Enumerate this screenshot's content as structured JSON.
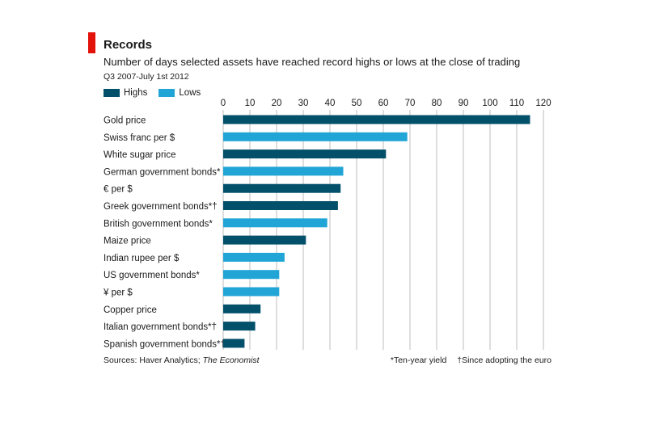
{
  "header": {
    "title": "Records",
    "subtitle": "Number of days selected assets have reached record highs or lows at the close of trading",
    "period": "Q3 2007-July 1st 2012"
  },
  "legend": {
    "highs_label": "Highs",
    "lows_label": "Lows"
  },
  "colors": {
    "accent": "#e3120b",
    "highs": "#03506a",
    "lows": "#21a5d6",
    "grid": "#bcbcbc"
  },
  "footer": {
    "source_prefix": "Sources: Haver Analytics; ",
    "source_publication": "The Economist",
    "footnote_yield": "*Ten-year yield",
    "footnote_euro": "†Since adopting the euro"
  },
  "chart_data": {
    "type": "bar",
    "orientation": "horizontal",
    "xlim": [
      0,
      120
    ],
    "xticks": [
      0,
      10,
      20,
      30,
      40,
      50,
      60,
      70,
      80,
      90,
      100,
      110,
      120
    ],
    "grid": true,
    "legend_position": "top-left",
    "categories": [
      "Gold price",
      "Swiss franc per $",
      "White sugar price",
      "German government bonds*",
      "€ per $",
      "Greek government bonds*†",
      "British government bonds*",
      "Maize price",
      "Indian rupee per $",
      "US government bonds*",
      "¥ per $",
      "Copper price",
      "Italian government bonds*†",
      "Spanish government bonds*†"
    ],
    "values": [
      115,
      69,
      61,
      45,
      44,
      43,
      39,
      31,
      23,
      21,
      21,
      14,
      12,
      8
    ],
    "kinds": [
      "Highs",
      "Lows",
      "Highs",
      "Lows",
      "Highs",
      "Highs",
      "Lows",
      "Highs",
      "Lows",
      "Lows",
      "Lows",
      "Highs",
      "Highs",
      "Highs"
    ]
  }
}
